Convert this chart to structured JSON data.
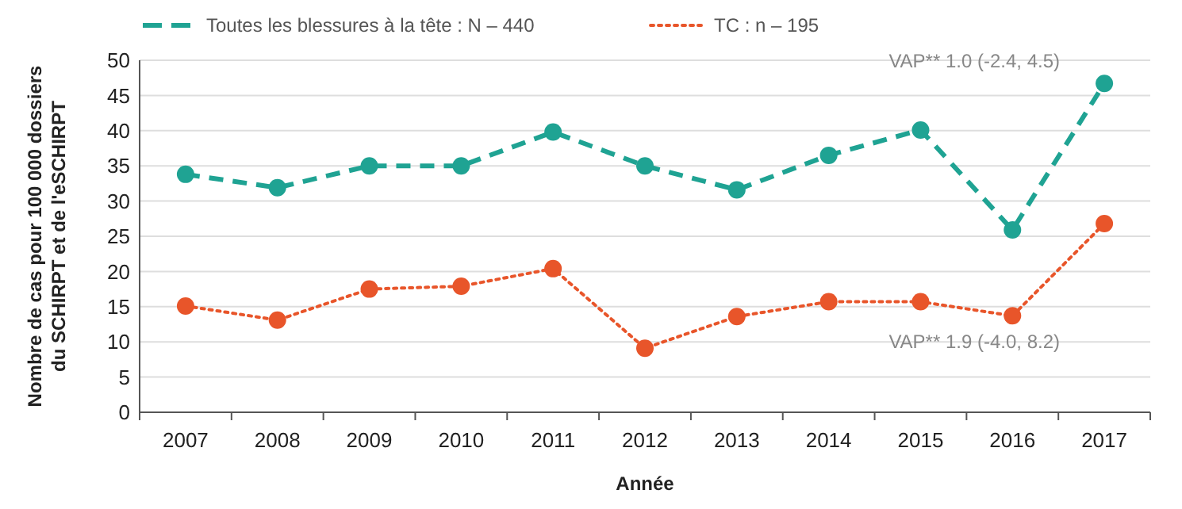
{
  "chart_data": {
    "type": "line",
    "xlabel": "Année",
    "ylabel": "Nombre de cas pour 100 000 dossiers\ndu SCHIRPT et de l'eSCHIRPT",
    "categories": [
      "2007",
      "2008",
      "2009",
      "2010",
      "2011",
      "2012",
      "2013",
      "2014",
      "2015",
      "2016",
      "2017"
    ],
    "series": [
      {
        "name": "Toutes les blessures à la tête : N – 440",
        "color": "#1fa393",
        "line_style": "dashed",
        "values": [
          33.8,
          31.9,
          35,
          35,
          39.8,
          35,
          31.6,
          36.5,
          40.1,
          25.9,
          46.7
        ]
      },
      {
        "name": "TC : n – 195",
        "color": "#e8552a",
        "line_style": "dotted",
        "values": [
          15.1,
          13.1,
          17.5,
          17.9,
          20.4,
          9.1,
          13.6,
          15.7,
          15.7,
          13.7,
          26.8
        ]
      }
    ],
    "annotations": [
      "VAP** 1.0 (-2.4, 4.5)",
      "VAP** 1.9 (-4.0, 8.2)"
    ],
    "ylim": [
      0,
      50
    ],
    "yticks": [
      0,
      5,
      10,
      15,
      20,
      25,
      30,
      35,
      40,
      45,
      50
    ],
    "grid": "y",
    "legend": "top left",
    "marker": "circle"
  }
}
